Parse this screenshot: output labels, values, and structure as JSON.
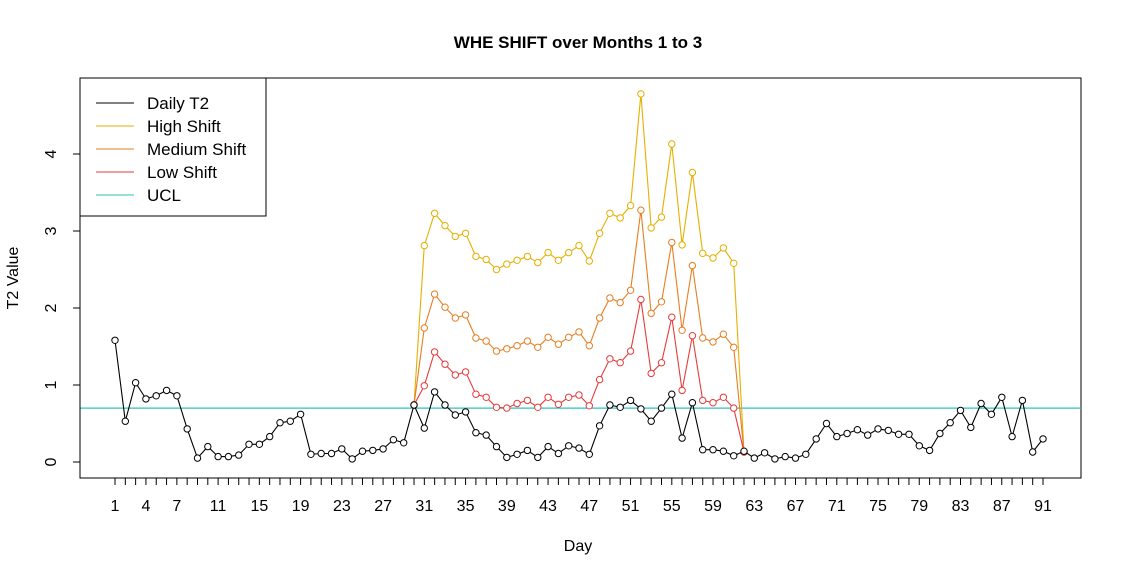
{
  "chart_data": {
    "type": "line",
    "title": "WHE SHIFT over Months 1 to 3",
    "xlabel": "Day",
    "ylabel": "T2 Value",
    "xlim": [
      1,
      91
    ],
    "ylim": [
      0,
      4.8
    ],
    "x_ticks": [
      "1",
      "4",
      "7",
      "11",
      "15",
      "19",
      "23",
      "27",
      "31",
      "35",
      "39",
      "43",
      "47",
      "51",
      "55",
      "59",
      "63",
      "67",
      "71",
      "75",
      "79",
      "83",
      "87",
      "91"
    ],
    "y_ticks": [
      "0",
      "1",
      "2",
      "3",
      "4"
    ],
    "x_tick_values": [
      1,
      4,
      7,
      11,
      15,
      19,
      23,
      27,
      31,
      35,
      39,
      43,
      47,
      51,
      55,
      59,
      63,
      67,
      71,
      75,
      79,
      83,
      87,
      91
    ],
    "y_tick_values": [
      0,
      1,
      2,
      3,
      4
    ],
    "legend_position": "top-left",
    "ucl": 0.7,
    "series": [
      {
        "name": "Daily T2",
        "color": "#000000",
        "x_start": 1,
        "values": [
          1.58,
          0.53,
          1.03,
          0.82,
          0.86,
          0.93,
          0.86,
          0.43,
          0.05,
          0.2,
          0.07,
          0.07,
          0.09,
          0.23,
          0.23,
          0.33,
          0.51,
          0.53,
          0.62,
          0.1,
          0.11,
          0.11,
          0.17,
          0.04,
          0.14,
          0.15,
          0.17,
          0.29,
          0.25,
          0.74,
          0.44,
          0.91,
          0.74,
          0.61,
          0.65,
          0.38,
          0.35,
          0.2,
          0.06,
          0.1,
          0.15,
          0.06,
          0.2,
          0.11,
          0.21,
          0.18,
          0.1,
          0.47,
          0.74,
          0.71,
          0.8,
          0.69,
          0.53,
          0.7,
          0.88,
          0.31,
          0.77,
          0.16,
          0.16,
          0.14,
          0.08,
          0.14,
          0.05,
          0.12,
          0.04,
          0.07,
          0.05,
          0.1,
          0.3,
          0.5,
          0.33,
          0.37,
          0.42,
          0.35,
          0.43,
          0.41,
          0.36,
          0.36,
          0.21,
          0.15,
          0.37,
          0.51,
          0.67,
          0.45,
          0.76,
          0.62,
          0.84,
          0.33,
          0.8,
          0.13,
          0.3
        ]
      },
      {
        "name": "High Shift",
        "color": "#E6AF00",
        "x_start": 30,
        "values": [
          0.74,
          2.81,
          3.23,
          3.07,
          2.93,
          2.97,
          2.67,
          2.63,
          2.5,
          2.57,
          2.62,
          2.67,
          2.59,
          2.72,
          2.62,
          2.72,
          2.81,
          2.61,
          2.97,
          3.23,
          3.17,
          3.33,
          4.78,
          3.04,
          3.18,
          4.13,
          2.82,
          3.76,
          2.71,
          2.65,
          2.78,
          2.58,
          0.13
        ]
      },
      {
        "name": "Medium Shift",
        "color": "#E67E22",
        "x_start": 30,
        "values": [
          0.74,
          1.74,
          2.18,
          2.01,
          1.87,
          1.91,
          1.61,
          1.57,
          1.44,
          1.47,
          1.51,
          1.57,
          1.49,
          1.62,
          1.53,
          1.62,
          1.69,
          1.51,
          1.87,
          2.13,
          2.07,
          2.23,
          3.27,
          1.93,
          2.08,
          2.85,
          1.71,
          2.55,
          1.61,
          1.56,
          1.66,
          1.49,
          0.13
        ]
      },
      {
        "name": "Low Shift",
        "color": "#E63B3B",
        "x_start": 30,
        "values": [
          0.74,
          0.99,
          1.43,
          1.27,
          1.13,
          1.17,
          0.88,
          0.84,
          0.71,
          0.7,
          0.76,
          0.8,
          0.71,
          0.84,
          0.75,
          0.84,
          0.87,
          0.73,
          1.07,
          1.34,
          1.29,
          1.44,
          2.11,
          1.15,
          1.29,
          1.88,
          0.93,
          1.64,
          0.8,
          0.77,
          0.84,
          0.7,
          0.13
        ]
      },
      {
        "name": "UCL",
        "color": "#2FC2C2",
        "value": 0.7
      }
    ]
  }
}
